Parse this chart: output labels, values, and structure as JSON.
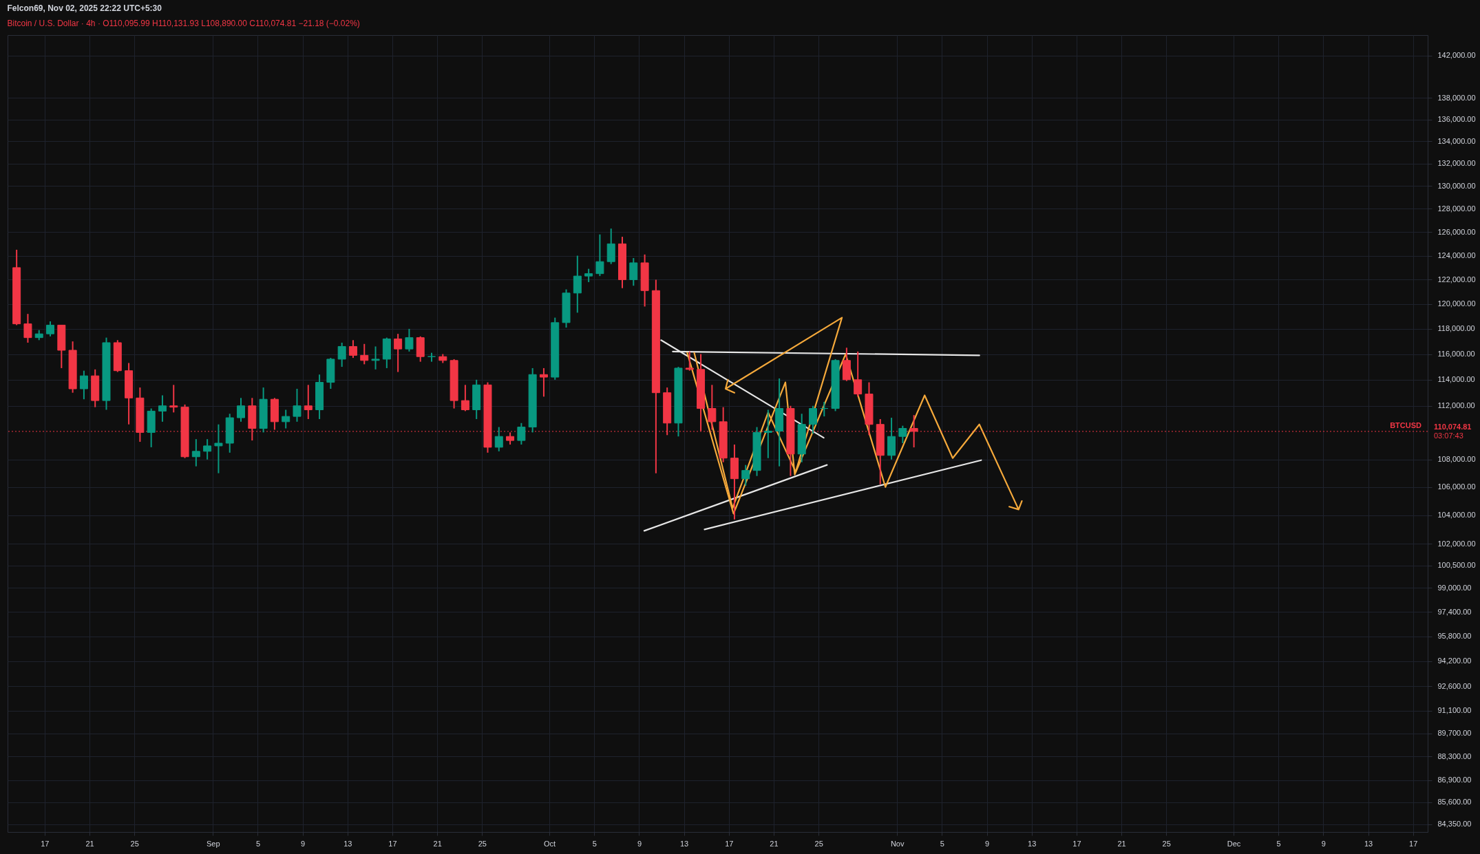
{
  "chart_data": {
    "type": "candlestick",
    "title": "Felcon69, Nov 02, 2025 22:22 UTC+5:30",
    "subtitle": "Bitcoin / U.S. Dollar · 4h · O110,095.99 H110,131.93 L108,890.00 C110,074.81 −21.18 (−0.02%)",
    "x": [
      "2025-08-14T12:00",
      "2025-08-15T12:00",
      "2025-08-16T12:00",
      "2025-08-17T12:00",
      "2025-08-18T12:00",
      "2025-08-19T12:00",
      "2025-08-20T12:00",
      "2025-08-21T12:00",
      "2025-08-22T12:00",
      "2025-08-23T12:00",
      "2025-08-24T12:00",
      "2025-08-25T12:00",
      "2025-08-26T12:00",
      "2025-08-27T12:00",
      "2025-08-28T12:00",
      "2025-08-29T12:00",
      "2025-08-30T12:00",
      "2025-08-31T12:00",
      "2025-09-01T12:00",
      "2025-09-02T12:00",
      "2025-09-03T12:00",
      "2025-09-04T12:00",
      "2025-09-05T12:00",
      "2025-09-06T12:00",
      "2025-09-07T12:00",
      "2025-09-08T12:00",
      "2025-09-09T12:00",
      "2025-09-10T12:00",
      "2025-09-11T12:00",
      "2025-09-12T12:00",
      "2025-09-13T12:00",
      "2025-09-14T12:00",
      "2025-09-15T12:00",
      "2025-09-16T12:00",
      "2025-09-17T12:00",
      "2025-09-18T12:00",
      "2025-09-19T12:00",
      "2025-09-20T12:00",
      "2025-09-21T12:00",
      "2025-09-22T12:00",
      "2025-09-23T12:00",
      "2025-09-24T12:00",
      "2025-09-25T12:00",
      "2025-09-26T12:00",
      "2025-09-27T12:00",
      "2025-09-28T12:00",
      "2025-09-29T12:00",
      "2025-09-30T12:00",
      "2025-10-01T12:00",
      "2025-10-02T12:00",
      "2025-10-03T12:00",
      "2025-10-04T12:00",
      "2025-10-05T12:00",
      "2025-10-06T12:00",
      "2025-10-07T12:00",
      "2025-10-08T12:00",
      "2025-10-09T12:00",
      "2025-10-10T12:00",
      "2025-10-11T12:00",
      "2025-10-12T12:00",
      "2025-10-13T12:00",
      "2025-10-14T12:00",
      "2025-10-15T12:00",
      "2025-10-16T12:00",
      "2025-10-17T12:00",
      "2025-10-18T12:00",
      "2025-10-19T12:00",
      "2025-10-20T12:00",
      "2025-10-21T12:00",
      "2025-10-22T12:00",
      "2025-10-23T12:00",
      "2025-10-24T12:00",
      "2025-10-25T12:00",
      "2025-10-26T12:00",
      "2025-10-27T12:00",
      "2025-10-28T12:00",
      "2025-10-29T12:00",
      "2025-10-30T12:00",
      "2025-10-31T12:00",
      "2025-11-01T12:00",
      "2025-11-02T12:00"
    ],
    "ohlc": [
      [
        123000,
        124500,
        118300,
        118400
      ],
      [
        118400,
        119200,
        116900,
        117300
      ],
      [
        117300,
        117900,
        117100,
        117600
      ],
      [
        117600,
        118600,
        117400,
        118300
      ],
      [
        118300,
        118300,
        114900,
        116300
      ],
      [
        116300,
        117000,
        113000,
        113300
      ],
      [
        113300,
        114700,
        112500,
        114300
      ],
      [
        114300,
        114800,
        111900,
        112400
      ],
      [
        112400,
        117300,
        111700,
        116900
      ],
      [
        116900,
        117100,
        114600,
        114700
      ],
      [
        114700,
        115300,
        110600,
        112600
      ],
      [
        112600,
        113400,
        109300,
        110000
      ],
      [
        110000,
        111800,
        108900,
        111600
      ],
      [
        111600,
        112800,
        110800,
        112000
      ],
      [
        112000,
        113600,
        111500,
        111900
      ],
      [
        111900,
        112100,
        108100,
        108200
      ],
      [
        108200,
        109500,
        107500,
        108600
      ],
      [
        108600,
        109500,
        108000,
        109000
      ],
      [
        109000,
        110600,
        107000,
        109200
      ],
      [
        109200,
        111400,
        108500,
        111100
      ],
      [
        111100,
        112600,
        110800,
        112000
      ],
      [
        112000,
        112600,
        109400,
        110300
      ],
      [
        110300,
        113400,
        110000,
        112500
      ],
      [
        112500,
        112600,
        110200,
        110800
      ],
      [
        110800,
        111700,
        110300,
        111200
      ],
      [
        111200,
        113300,
        110800,
        112000
      ],
      [
        112000,
        113600,
        111000,
        111700
      ],
      [
        111700,
        114400,
        111000,
        113800
      ],
      [
        113800,
        115700,
        113300,
        115600
      ],
      [
        115600,
        116900,
        115000,
        116600
      ],
      [
        116600,
        117100,
        115700,
        115900
      ],
      [
        115900,
        116800,
        115200,
        115500
      ],
      [
        115500,
        116600,
        114800,
        115600
      ],
      [
        115600,
        117300,
        114900,
        117200
      ],
      [
        117200,
        117600,
        114600,
        116400
      ],
      [
        116400,
        118000,
        116200,
        117300
      ],
      [
        117300,
        117400,
        115400,
        115800
      ],
      [
        115800,
        116100,
        115400,
        115800
      ],
      [
        115800,
        116000,
        115300,
        115500
      ],
      [
        115500,
        115600,
        111800,
        112400
      ],
      [
        112400,
        113600,
        111600,
        111700
      ],
      [
        111700,
        114000,
        111000,
        113600
      ],
      [
        113600,
        113800,
        108500,
        108900
      ],
      [
        108900,
        110400,
        108600,
        109700
      ],
      [
        109700,
        110000,
        109100,
        109400
      ],
      [
        109400,
        110700,
        109100,
        110400
      ],
      [
        110400,
        114900,
        110000,
        114400
      ],
      [
        114400,
        114900,
        112700,
        114200
      ],
      [
        114200,
        118900,
        114000,
        118500
      ],
      [
        118500,
        121200,
        118100,
        120900
      ],
      [
        120900,
        124000,
        119300,
        122300
      ],
      [
        122300,
        122900,
        121800,
        122500
      ],
      [
        122500,
        125800,
        122300,
        123500
      ],
      [
        123500,
        126300,
        123300,
        125000
      ],
      [
        125000,
        125600,
        121300,
        122000
      ],
      [
        122000,
        123800,
        121500,
        123400
      ],
      [
        123400,
        124100,
        119800,
        121100
      ],
      [
        121100,
        122000,
        107000,
        113000
      ],
      [
        113000,
        113400,
        109800,
        110700
      ],
      [
        110700,
        115000,
        109700,
        114900
      ],
      [
        114900,
        116200,
        114700,
        114800
      ],
      [
        114800,
        116000,
        110100,
        111800
      ],
      [
        111800,
        113600,
        110200,
        110800
      ],
      [
        110800,
        111900,
        107800,
        108100
      ],
      [
        108100,
        109100,
        103700,
        106600
      ],
      [
        106600,
        107600,
        106100,
        107200
      ],
      [
        107200,
        110400,
        106800,
        110000
      ],
      [
        110000,
        111700,
        108100,
        110100
      ],
      [
        110100,
        114100,
        107500,
        111800
      ],
      [
        111800,
        112000,
        106800,
        108400
      ],
      [
        108400,
        111400,
        107800,
        110600
      ],
      [
        110600,
        112000,
        109900,
        111800
      ],
      [
        111800,
        112300,
        111200,
        111800
      ],
      [
        111800,
        115600,
        111600,
        115500
      ],
      [
        115500,
        116500,
        113900,
        114000
      ],
      [
        114000,
        116200,
        112700,
        112900
      ],
      [
        112900,
        113800,
        109800,
        110600
      ],
      [
        110600,
        111000,
        106200,
        108300
      ],
      [
        108300,
        111100,
        108000,
        109700
      ],
      [
        109700,
        110500,
        109200,
        110300
      ],
      [
        110300,
        111300,
        108890,
        110074.81
      ]
    ],
    "colors": [
      "#f23645",
      "#f23645",
      "#089981",
      "#089981",
      "#f23645",
      "#f23645",
      "#089981",
      "#f23645",
      "#089981",
      "#f23645",
      "#f23645",
      "#f23645",
      "#089981",
      "#089981",
      "#f23645",
      "#f23645",
      "#089981",
      "#089981",
      "#089981",
      "#089981",
      "#089981",
      "#f23645",
      "#089981",
      "#f23645",
      "#089981",
      "#089981",
      "#f23645",
      "#089981",
      "#089981",
      "#089981",
      "#f23645",
      "#f23645",
      "#089981",
      "#089981",
      "#f23645",
      "#089981",
      "#f23645",
      "#089981",
      "#f23645",
      "#f23645",
      "#f23645",
      "#089981",
      "#f23645",
      "#089981",
      "#f23645",
      "#089981",
      "#089981",
      "#f23645",
      "#089981",
      "#089981",
      "#089981",
      "#089981",
      "#089981",
      "#089981",
      "#f23645",
      "#089981",
      "#f23645",
      "#f23645",
      "#f23645",
      "#089981",
      "#f23645",
      "#f23645",
      "#f23645",
      "#f23645",
      "#f23645",
      "#089981",
      "#089981",
      "#089981",
      "#089981",
      "#f23645",
      "#089981",
      "#089981",
      "#089981",
      "#089981",
      "#f23645",
      "#f23645",
      "#f23645",
      "#f23645",
      "#089981",
      "#089981",
      "#f23645"
    ],
    "series": [
      {
        "type": "line",
        "color": "#e6e6e6",
        "x": [
          "2025-10-12T00:00",
          "2025-11-08T08:00"
        ],
        "values": [
          116200,
          115900
        ]
      },
      {
        "type": "line",
        "color": "#e6e6e6",
        "x": [
          "2025-10-10T23:00",
          "2025-10-25T11:00"
        ],
        "values": [
          117100,
          109600
        ]
      },
      {
        "type": "line",
        "color": "#e6e6e6",
        "x": [
          "2025-10-09T11:00",
          "2025-10-25T18:00"
        ],
        "values": [
          102900,
          107600
        ]
      },
      {
        "type": "line",
        "color": "#e6e6e6",
        "x": [
          "2025-10-14T20:00",
          "2025-11-08T12:00"
        ],
        "values": [
          103000,
          107950
        ]
      },
      {
        "type": "line",
        "color": "#f5a93b",
        "x": [
          "2025-10-13T07:00",
          "2025-10-17T10:00",
          "2025-10-22T01:00",
          "2025-10-22T21:00",
          "2025-10-27T10:00",
          "2025-10-30T23:00",
          "2025-11-03T11:00",
          "2025-11-05T23:00",
          "2025-11-08T08:00",
          "2025-11-11T20:00",
          "2025-11-11T00:00",
          "2025-11-11T20:00",
          "2025-11-12T03:00"
        ],
        "values": [
          116100,
          104100,
          113800,
          106900,
          116000,
          106000,
          112800,
          108100,
          110600,
          104400,
          104600,
          104400,
          105000
        ]
      },
      {
        "type": "line",
        "color": "#f5a93b",
        "x": [
          "2025-10-13T22:00",
          "2025-10-17T08:00",
          "2025-10-20T12:00",
          "2025-10-22T23:00",
          "2025-10-27T02:00",
          "2025-10-16T17:00",
          "2025-10-16T22:00",
          "2025-10-16T17:00",
          "2025-10-17T12:00"
        ],
        "values": [
          116100,
          104500,
          111500,
          107100,
          118900,
          113300,
          114000,
          113300,
          113000
        ]
      }
    ],
    "ref_lines": [
      {
        "axis": "y",
        "value": 110074.81,
        "label": "BTCUSD",
        "color": "#f23645",
        "line_style": "dotted"
      }
    ],
    "annotations": [
      "110,074.81",
      "03:07:43"
    ],
    "log": true,
    "grid": true,
    "xlim": [
      "2025-08-14",
      "2025-12-18"
    ],
    "xticks": [
      {
        "value": "2025-08-17",
        "label": "17"
      },
      {
        "value": "2025-08-21",
        "label": "21"
      },
      {
        "value": "2025-08-25",
        "label": "25"
      },
      {
        "value": "2025-09-01",
        "label": "Sep"
      },
      {
        "value": "2025-09-05",
        "label": "5"
      },
      {
        "value": "2025-09-09",
        "label": "9"
      },
      {
        "value": "2025-09-13",
        "label": "13"
      },
      {
        "value": "2025-09-17",
        "label": "17"
      },
      {
        "value": "2025-09-21",
        "label": "21"
      },
      {
        "value": "2025-09-25",
        "label": "25"
      },
      {
        "value": "2025-10-01",
        "label": "Oct"
      },
      {
        "value": "2025-10-05",
        "label": "5"
      },
      {
        "value": "2025-10-09",
        "label": "9"
      },
      {
        "value": "2025-10-13",
        "label": "13"
      },
      {
        "value": "2025-10-17",
        "label": "17"
      },
      {
        "value": "2025-10-21",
        "label": "21"
      },
      {
        "value": "2025-10-25",
        "label": "25"
      },
      {
        "value": "2025-11-01",
        "label": "Nov"
      },
      {
        "value": "2025-11-05",
        "label": "5"
      },
      {
        "value": "2025-11-09",
        "label": "9"
      },
      {
        "value": "2025-11-13",
        "label": "13"
      },
      {
        "value": "2025-11-17",
        "label": "17"
      },
      {
        "value": "2025-11-21",
        "label": "21"
      },
      {
        "value": "2025-11-25",
        "label": "25"
      },
      {
        "value": "2025-12-01",
        "label": "Dec"
      },
      {
        "value": "2025-12-05",
        "label": "5"
      },
      {
        "value": "2025-12-09",
        "label": "9"
      },
      {
        "value": "2025-12-13",
        "label": "13"
      },
      {
        "value": "2025-12-17",
        "label": "17"
      }
    ],
    "ylim": [
      83900,
      144000
    ],
    "yticks": [
      {
        "value": 142000,
        "label": "142,000.00"
      },
      {
        "value": 138000,
        "label": "138,000.00"
      },
      {
        "value": 136000,
        "label": "136,000.00"
      },
      {
        "value": 134000,
        "label": "134,000.00"
      },
      {
        "value": 132000,
        "label": "132,000.00"
      },
      {
        "value": 130000,
        "label": "130,000.00"
      },
      {
        "value": 128000,
        "label": "128,000.00"
      },
      {
        "value": 126000,
        "label": "126,000.00"
      },
      {
        "value": 124000,
        "label": "124,000.00"
      },
      {
        "value": 122000,
        "label": "122,000.00"
      },
      {
        "value": 120000,
        "label": "120,000.00"
      },
      {
        "value": 118000,
        "label": "118,000.00"
      },
      {
        "value": 116000,
        "label": "116,000.00"
      },
      {
        "value": 114000,
        "label": "114,000.00"
      },
      {
        "value": 112000,
        "label": "112,000.00"
      },
      {
        "value": 108000,
        "label": "108,000.00"
      },
      {
        "value": 106000,
        "label": "106,000.00"
      },
      {
        "value": 104000,
        "label": "104,000.00"
      },
      {
        "value": 102000,
        "label": "102,000.00"
      },
      {
        "value": 100500,
        "label": "100,500.00"
      },
      {
        "value": 99000,
        "label": "99,000.00"
      },
      {
        "value": 97400,
        "label": "97,400.00"
      },
      {
        "value": 95800,
        "label": "95,800.00"
      },
      {
        "value": 94200,
        "label": "94,200.00"
      },
      {
        "value": 92600,
        "label": "92,600.00"
      },
      {
        "value": 91100,
        "label": "91,100.00"
      },
      {
        "value": 89700,
        "label": "89,700.00"
      },
      {
        "value": 88300,
        "label": "88,300.00"
      },
      {
        "value": 86900,
        "label": "86,900.00"
      },
      {
        "value": 85600,
        "label": "85,600.00"
      },
      {
        "value": 84350,
        "label": "84,350.00"
      }
    ]
  }
}
